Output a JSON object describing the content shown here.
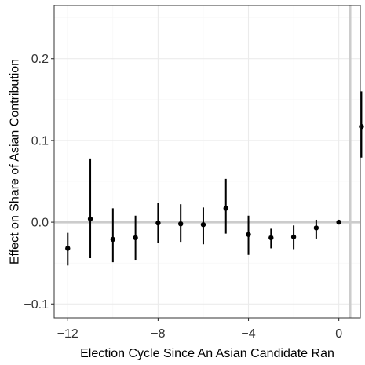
{
  "chart_data": {
    "type": "scatter",
    "subtype": "point-range",
    "xlabel": "Election Cycle  Since An Asian Candidate Ran",
    "ylabel": "Effect on Share of Asian Contribution",
    "xlim": [
      -12.6,
      0.95
    ],
    "ylim": [
      -0.117,
      0.265
    ],
    "x_ticks": [
      -12,
      -8,
      -4,
      0
    ],
    "x_tick_labels": [
      "−12",
      "−8",
      "−4",
      "0"
    ],
    "y_ticks": [
      -0.1,
      0.0,
      0.1,
      0.2
    ],
    "y_tick_labels": [
      "−0.1",
      "0.0",
      "0.1",
      "0.2"
    ],
    "reference_lines": {
      "horizontal_y": 0,
      "vertical_x": 0.5
    },
    "grid": true,
    "points": [
      {
        "x": -12,
        "y": -0.032,
        "lo": -0.053,
        "hi": -0.013
      },
      {
        "x": -11,
        "y": 0.004,
        "lo": -0.044,
        "hi": 0.078
      },
      {
        "x": -10,
        "y": -0.021,
        "lo": -0.049,
        "hi": 0.017
      },
      {
        "x": -9,
        "y": -0.019,
        "lo": -0.046,
        "hi": 0.008
      },
      {
        "x": -8,
        "y": -0.001,
        "lo": -0.025,
        "hi": 0.024
      },
      {
        "x": -7,
        "y": -0.002,
        "lo": -0.024,
        "hi": 0.022
      },
      {
        "x": -6,
        "y": -0.003,
        "lo": -0.027,
        "hi": 0.018
      },
      {
        "x": -5,
        "y": 0.017,
        "lo": -0.014,
        "hi": 0.053
      },
      {
        "x": -4,
        "y": -0.015,
        "lo": -0.04,
        "hi": 0.008
      },
      {
        "x": -3,
        "y": -0.019,
        "lo": -0.032,
        "hi": -0.008
      },
      {
        "x": -2,
        "y": -0.018,
        "lo": -0.033,
        "hi": -0.004
      },
      {
        "x": -1,
        "y": -0.007,
        "lo": -0.02,
        "hi": 0.003
      },
      {
        "x": 0,
        "y": 0.0,
        "lo": 0.0,
        "hi": 0.0
      },
      {
        "x": 1,
        "y": 0.117,
        "lo": 0.079,
        "hi": 0.16
      }
    ]
  },
  "colors": {
    "point": "#000000",
    "reference_line": "#cccccc",
    "grid_major": "#ebebeb",
    "grid_minor": "#f5f5f5",
    "panel_border": "#333333"
  }
}
